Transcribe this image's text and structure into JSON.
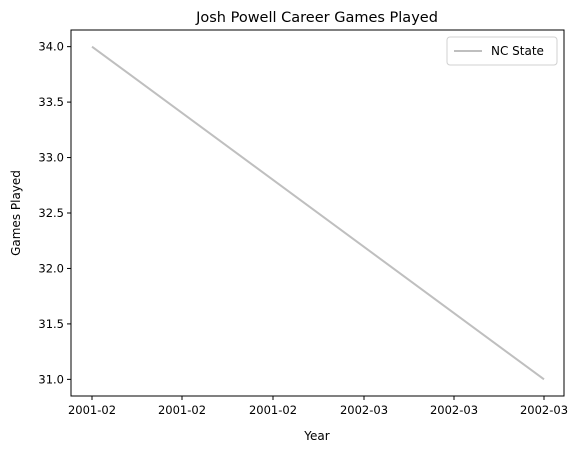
{
  "chart_data": {
    "type": "line",
    "title": "Josh Powell Career Games Played",
    "xlabel": "Year",
    "ylabel": "Games Played",
    "x_tick_labels": [
      "2001-02",
      "2001-02",
      "2001-02",
      "2002-03",
      "2002-03",
      "2002-03"
    ],
    "y_ticks": [
      31.0,
      31.5,
      32.0,
      32.5,
      33.0,
      33.5,
      34.0
    ],
    "ylim": [
      30.85,
      34.15
    ],
    "grid": false,
    "legend": "top-right",
    "series": [
      {
        "name": "NC State",
        "color": "#bfbfbf",
        "points": [
          {
            "x": "2001-02",
            "y": 34
          },
          {
            "x": "2002-03",
            "y": 31
          }
        ]
      }
    ]
  }
}
